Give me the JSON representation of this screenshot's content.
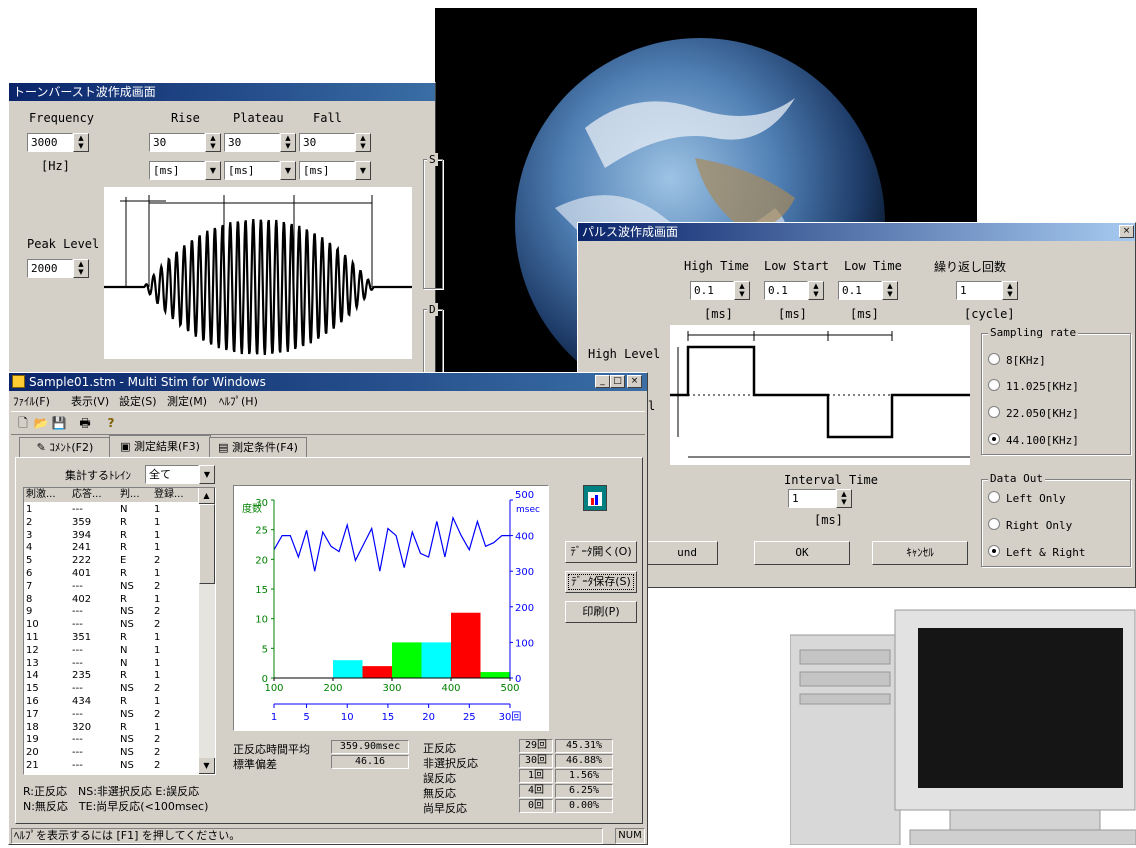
{
  "tone_window": {
    "title": "トーンバースト波作成画面",
    "frequency_label": "Frequency",
    "frequency_value": "3000",
    "frequency_unit": "[Hz]",
    "rise_label": "Rise",
    "plateau_label": "Plateau",
    "fall_label": "Fall",
    "rise_value": "30",
    "plateau_value": "30",
    "fall_value": "30",
    "rise_unit": "[ms]",
    "plateau_unit": "[ms]",
    "fall_unit": "[ms]",
    "peak_label": "Peak Level",
    "peak_value": "2000",
    "group_s": "S",
    "group_d": "D"
  },
  "pulse_window": {
    "title": "パルス波作成画面",
    "close_glyph": "×",
    "high_time_label": "High Time",
    "low_start_label": "Low Start",
    "low_time_label": "Low Time",
    "repeat_label": "繰り返し回数",
    "high_time_value": "0.1",
    "low_start_value": "0.1",
    "low_time_value": "0.1",
    "repeat_value": "1",
    "high_time_unit": "[ms]",
    "low_start_unit": "[ms]",
    "low_time_unit": "[ms]",
    "repeat_unit": "[cycle]",
    "high_level_label": "High Level",
    "low_level_fragment": "l",
    "interval_label": "Interval Time",
    "interval_value": "1",
    "interval_unit": "[ms]",
    "sampling_title": "Sampling rate",
    "sampling_options": [
      "8[KHz]",
      "11.025[KHz]",
      "22.050[KHz]",
      "44.100[KHz]"
    ],
    "sampling_selected": 3,
    "dataout_title": "Data Out",
    "dataout_options": [
      "Left Only",
      "Right Only",
      "Left & Right"
    ],
    "dataout_selected": 2,
    "sound_button": "und",
    "ok_button": "OK",
    "cancel_button": "ｷｬﾝｾﾙ"
  },
  "main_window": {
    "title": "Sample01.stm - Multi Stim for Windows",
    "menus": [
      "ﾌｧｲﾙ(F)",
      "表示(V)",
      "設定(S)",
      "測定(M)",
      "ﾍﾙﾌﾟ(H)"
    ],
    "tabs": [
      "ｺﾒﾝﾄ(F2)",
      "測定結果(F3)",
      "測定条件(F4)"
    ],
    "train_label": "集計するﾄﾚｲﾝ",
    "train_value": "全て",
    "list_headers": [
      "刺激...",
      "応答...",
      "判...",
      "登録..."
    ],
    "rows": [
      [
        "1",
        "---",
        "N",
        "1"
      ],
      [
        "2",
        "359",
        "R",
        "1"
      ],
      [
        "3",
        "394",
        "R",
        "1"
      ],
      [
        "4",
        "241",
        "R",
        "1"
      ],
      [
        "5",
        "222",
        "E",
        "2"
      ],
      [
        "6",
        "401",
        "R",
        "1"
      ],
      [
        "7",
        "---",
        "NS",
        "2"
      ],
      [
        "8",
        "402",
        "R",
        "1"
      ],
      [
        "9",
        "---",
        "NS",
        "2"
      ],
      [
        "10",
        "---",
        "NS",
        "2"
      ],
      [
        "11",
        "351",
        "R",
        "1"
      ],
      [
        "12",
        "---",
        "N",
        "1"
      ],
      [
        "13",
        "---",
        "N",
        "1"
      ],
      [
        "14",
        "235",
        "R",
        "1"
      ],
      [
        "15",
        "---",
        "NS",
        "2"
      ],
      [
        "16",
        "434",
        "R",
        "1"
      ],
      [
        "17",
        "---",
        "NS",
        "2"
      ],
      [
        "18",
        "320",
        "R",
        "1"
      ],
      [
        "19",
        "---",
        "NS",
        "2"
      ],
      [
        "20",
        "---",
        "NS",
        "2"
      ],
      [
        "21",
        "---",
        "NS",
        "2"
      ]
    ],
    "legend_line1": "R:正反応　NS:非選択反応 E:誤反応",
    "legend_line2": "N:無反応　TE:尚早反応(<100msec)",
    "btn_open": "ﾃﾞｰﾀ開く(O)",
    "btn_save": "ﾃﾞｰﾀ保存(S)",
    "btn_print": "印刷(P)",
    "avg_label": "正反応時間平均",
    "avg_value": "359.90msec",
    "sd_label": "標準偏差",
    "sd_value": "46.16",
    "stats": [
      {
        "label": "正反応",
        "count": "29回",
        "pct": "45.31%"
      },
      {
        "label": "非選択反応",
        "count": "30回",
        "pct": "46.88%"
      },
      {
        "label": "誤反応",
        "count": "1回",
        "pct": "1.56%"
      },
      {
        "label": "無反応",
        "count": "4回",
        "pct": "6.25%"
      },
      {
        "label": "尚早反応",
        "count": "0回",
        "pct": "0.00%"
      }
    ],
    "status_text": "ﾍﾙﾌﾟを表示するには [F1] を押してください。",
    "status_num": "NUM"
  },
  "chart_data": {
    "type": "bar",
    "left_axis_label": "度数",
    "right_axis_label": "msec",
    "left_ticks": [
      "30",
      "25",
      "20",
      "15",
      "10",
      "5",
      "0"
    ],
    "right_ticks": [
      "500",
      "400",
      "300",
      "200",
      "100",
      "0"
    ],
    "x_ticks": [
      "100",
      "200",
      "300",
      "400",
      "500"
    ],
    "bottom_ticks": [
      "1",
      "5",
      "10",
      "15",
      "20",
      "25",
      "30回"
    ],
    "ylim": [
      0,
      30
    ],
    "xlim": [
      100,
      500
    ],
    "bars": [
      {
        "x0": 200,
        "x1": 250,
        "value": 3,
        "color": "#00ffff"
      },
      {
        "x0": 250,
        "x1": 300,
        "value": 2,
        "color": "#ff0000"
      },
      {
        "x0": 300,
        "x1": 350,
        "value": 6,
        "color": "#00ff00"
      },
      {
        "x0": 350,
        "x1": 400,
        "value": 6,
        "color": "#00ffff"
      },
      {
        "x0": 400,
        "x1": 450,
        "value": 11,
        "color": "#ff0000"
      },
      {
        "x0": 450,
        "x1": 500,
        "value": 1,
        "color": "#00ff00"
      }
    ],
    "line_color": "#0000ff",
    "line_ylim": [
      0,
      500
    ],
    "line_xlim": [
      1,
      30
    ],
    "line": [
      {
        "x": 1,
        "y": 360
      },
      {
        "x": 2,
        "y": 400
      },
      {
        "x": 3,
        "y": 400
      },
      {
        "x": 4,
        "y": 340
      },
      {
        "x": 5,
        "y": 415
      },
      {
        "x": 6,
        "y": 300
      },
      {
        "x": 7,
        "y": 410
      },
      {
        "x": 8,
        "y": 370
      },
      {
        "x": 9,
        "y": 355
      },
      {
        "x": 10,
        "y": 430
      },
      {
        "x": 11,
        "y": 330
      },
      {
        "x": 12,
        "y": 375
      },
      {
        "x": 13,
        "y": 420
      },
      {
        "x": 14,
        "y": 300
      },
      {
        "x": 15,
        "y": 420
      },
      {
        "x": 16,
        "y": 400
      },
      {
        "x": 17,
        "y": 310
      },
      {
        "x": 18,
        "y": 410
      },
      {
        "x": 19,
        "y": 350
      },
      {
        "x": 20,
        "y": 340
      },
      {
        "x": 21,
        "y": 440
      },
      {
        "x": 22,
        "y": 340
      },
      {
        "x": 23,
        "y": 450
      },
      {
        "x": 24,
        "y": 400
      },
      {
        "x": 25,
        "y": 360
      },
      {
        "x": 26,
        "y": 440
      },
      {
        "x": 27,
        "y": 370
      },
      {
        "x": 28,
        "y": 380
      },
      {
        "x": 29,
        "y": 400
      },
      {
        "x": 30,
        "y": 400
      }
    ]
  }
}
